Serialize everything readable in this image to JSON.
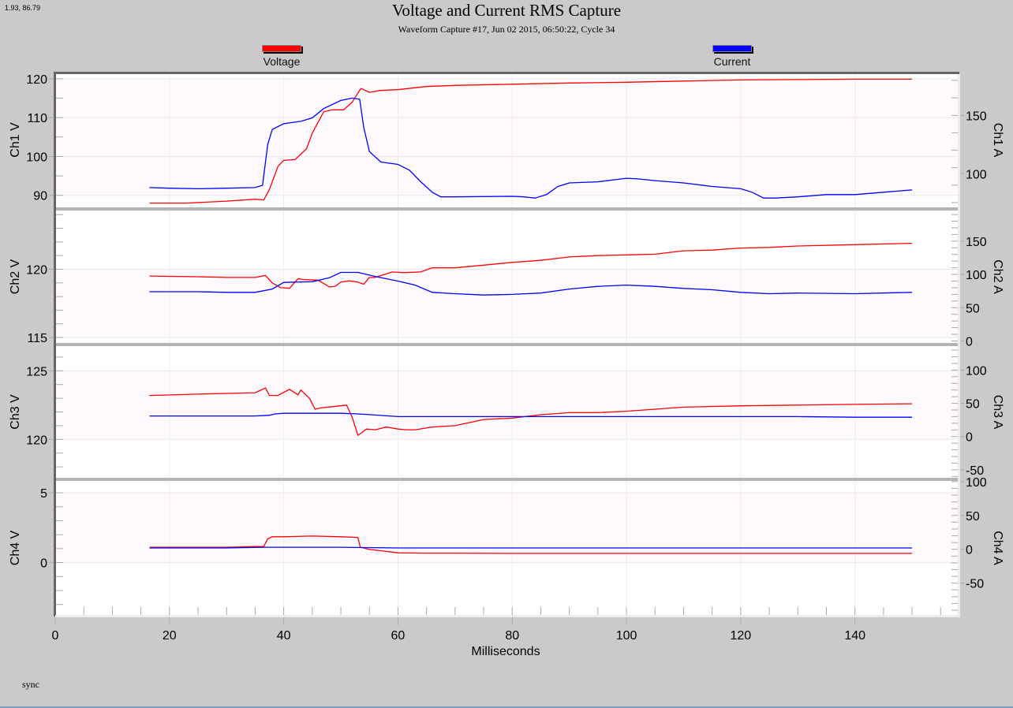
{
  "window": {
    "cursor_coords": "1.93, 86.79",
    "status_text": "sync"
  },
  "legend": {
    "voltage": {
      "label": "Voltage",
      "color": "#ff0000"
    },
    "current": {
      "label": "Current",
      "color": "#0000ff"
    }
  },
  "chart_data": {
    "type": "line",
    "title": "Voltage and Current RMS Capture",
    "subtitle": "Waveform Capture #17, Jun 02 2015, 06:50:22,  Cycle 34",
    "xlabel": "Milliseconds",
    "xlim": [
      0,
      158
    ],
    "xticks": [
      0,
      20,
      40,
      60,
      80,
      100,
      120,
      140
    ],
    "grid": true,
    "legend_position": "top",
    "panels": [
      {
        "name": "Ch1",
        "ylabel_left": "Ch1 V",
        "ylabel_right": "Ch1 A",
        "ylim_left": [
          86.9,
          121.6
        ],
        "ylim_right": [
          71,
          187
        ],
        "yticks_left": [
          90,
          100,
          110,
          120
        ],
        "yticks_right": [
          100,
          150
        ],
        "series": [
          {
            "name": "Voltage",
            "axis": "left",
            "x": [
              16.5,
              23,
              30,
              35,
              36.5,
              37.5,
              39,
              40,
              42,
              44,
              45,
              47,
              48.5,
              50.5,
              52,
              53.5,
              55,
              57,
              60,
              65,
              70,
              80,
              90,
              100,
              110,
              120,
              130,
              140,
              150
            ],
            "y": [
              88.0,
              88.0,
              88.5,
              89.0,
              88.8,
              91.5,
              97.5,
              99.0,
              99.2,
              102,
              106,
              111.5,
              112,
              112,
              114,
              117.5,
              116.5,
              117,
              117.2,
              118.0,
              118.3,
              118.6,
              118.9,
              119.1,
              119.4,
              119.7,
              119.8,
              119.9,
              119.9
            ]
          },
          {
            "name": "Current",
            "axis": "right",
            "x": [
              16.5,
              20,
              25,
              30,
              35,
              36.3,
              37.2,
              38,
              40,
              43,
              45,
              47,
              50,
              52,
              53.3,
              54,
              55,
              57,
              60,
              62,
              64,
              66,
              67.5,
              70,
              80,
              82,
              84,
              86,
              88,
              90,
              95,
              100,
              102,
              105,
              110,
              115,
              120,
              122,
              124,
              126,
              130,
              135,
              140,
              145,
              150
            ],
            "y": [
              88,
              87.5,
              87,
              87.5,
              88,
              90,
              125,
              138,
              143,
              145,
              148,
              156,
              163,
              165,
              164,
              140,
              119,
              110,
              108,
              103,
              93,
              84,
              80,
              80,
              80.5,
              80,
              79,
              82,
              89,
              92,
              93,
              96,
              95.5,
              94,
              92,
              89,
              87,
              84,
              79,
              79,
              80,
              82,
              82,
              84,
              86
            ]
          }
        ]
      },
      {
        "name": "Ch2",
        "ylabel_left": "Ch2 V",
        "ylabel_right": "Ch2 A",
        "ylim_left": [
          114.6,
          124.3
        ],
        "ylim_right": [
          -3,
          196
        ],
        "yticks_left": [
          115,
          120
        ],
        "yticks_right": [
          0,
          50,
          100,
          150
        ],
        "series": [
          {
            "name": "Voltage",
            "axis": "left",
            "x": [
              16.5,
              25,
              30,
              35,
              36.8,
              38,
              39.5,
              41,
              42.5,
              43.5,
              46,
              48,
              49,
              50,
              51.5,
              53,
              54,
              55,
              56,
              57.5,
              59,
              61,
              64,
              66,
              70,
              75,
              80,
              85,
              90,
              95,
              100,
              105,
              110,
              115,
              120,
              125,
              130,
              140,
              150
            ],
            "y": [
              119.5,
              119.45,
              119.4,
              119.4,
              119.55,
              119.0,
              118.65,
              118.6,
              119.3,
              119.25,
              119.2,
              118.7,
              118.75,
              119.05,
              119.15,
              119.05,
              118.9,
              119.4,
              119.4,
              119.6,
              119.8,
              119.75,
              119.8,
              120.1,
              120.1,
              120.3,
              120.5,
              120.65,
              120.9,
              121.0,
              121.05,
              121.1,
              121.35,
              121.4,
              121.55,
              121.6,
              121.7,
              121.8,
              121.9
            ]
          },
          {
            "name": "Current",
            "axis": "right",
            "x": [
              16.5,
              25,
              30,
              35,
              38,
              40,
              45,
              48,
              50,
              53,
              56,
              60,
              63,
              66,
              70,
              75,
              80,
              85,
              90,
              95,
              100,
              105,
              110,
              115,
              120,
              125,
              130,
              140,
              150
            ],
            "y": [
              74,
              74,
              73,
              73,
              78,
              88,
              89,
              95,
              103,
              103,
              97,
              90,
              84,
              73,
              71,
              69,
              70,
              72,
              78,
              82,
              84,
              82,
              79,
              77,
              73,
              71,
              72,
              71,
              73
            ]
          }
        ]
      },
      {
        "name": "Ch3",
        "ylabel_left": "Ch3 V",
        "ylabel_right": "Ch3 A",
        "ylim_left": [
          117.2,
          126.8
        ],
        "ylim_right": [
          -62,
          136
        ],
        "yticks_left": [
          120,
          125
        ],
        "yticks_right": [
          -50,
          0,
          50,
          100
        ],
        "series": [
          {
            "name": "Voltage",
            "axis": "left",
            "x": [
              16.5,
              25,
              30,
              35,
              36.8,
              37.5,
              39,
              41,
              42.5,
              43,
              44.5,
              45.5,
              46.5,
              50,
              51,
              52,
              53,
              53.5,
              54.5,
              56,
              58,
              60,
              61.5,
              63,
              66,
              70,
              75,
              80,
              85,
              90,
              95,
              100,
              105,
              110,
              120,
              130,
              140,
              150
            ],
            "y": [
              123.2,
              123.3,
              123.35,
              123.4,
              123.75,
              123.2,
              123.2,
              123.65,
              123.25,
              123.6,
              123.0,
              122.2,
              122.3,
              122.45,
              122.5,
              121.6,
              120.3,
              120.45,
              120.75,
              120.7,
              120.9,
              120.75,
              120.7,
              120.7,
              120.9,
              121.0,
              121.45,
              121.55,
              121.8,
              121.95,
              121.95,
              122.05,
              122.2,
              122.35,
              122.45,
              122.5,
              122.55,
              122.6
            ]
          },
          {
            "name": "Current",
            "axis": "right",
            "x": [
              16.5,
              35,
              37.5,
              38.5,
              40,
              45,
              50,
              53,
              55,
              60,
              65,
              70,
              75,
              80,
              90,
              100,
              110,
              120,
              130,
              140,
              149,
              150
            ],
            "y": [
              31,
              31,
              32,
              34,
              35,
              35,
              35,
              34,
              33,
              30,
              30,
              30,
              30,
              30,
              30,
              30,
              30,
              30,
              30,
              29,
              29,
              29
            ]
          }
        ]
      },
      {
        "name": "Ch4",
        "ylabel_left": "Ch4 V",
        "ylabel_right": "Ch4 A",
        "ylim_left": [
          -3.75,
          5.85
        ],
        "ylim_right": [
          -97,
          101
        ],
        "yticks_left": [
          0,
          5
        ],
        "yticks_right": [
          -50,
          0,
          50,
          100
        ],
        "series": [
          {
            "name": "Voltage",
            "axis": "left",
            "x": [
              16.5,
              25,
              30,
              35,
              36.5,
              37.2,
              38,
              40,
              45,
              50,
              52,
              53,
              53.4,
              55,
              57,
              60,
              65,
              70,
              80,
              90,
              100,
              110,
              120,
              130,
              140,
              150
            ],
            "y": [
              1.1,
              1.1,
              1.1,
              1.15,
              1.15,
              1.7,
              1.85,
              1.85,
              1.9,
              1.85,
              1.82,
              1.8,
              1.1,
              0.95,
              0.85,
              0.7,
              0.68,
              0.68,
              0.66,
              0.66,
              0.66,
              0.66,
              0.66,
              0.66,
              0.66,
              0.66
            ]
          },
          {
            "name": "Current",
            "axis": "right",
            "x": [
              16.5,
              30,
              36.5,
              40,
              50,
              60,
              70,
              80,
              90,
              100,
              110,
              120,
              130,
              140,
              150
            ],
            "y": [
              2,
              2,
              3,
              3,
              3,
              2,
              2,
              2,
              2,
              2,
              2,
              2,
              2,
              2,
              2
            ]
          }
        ]
      }
    ]
  }
}
